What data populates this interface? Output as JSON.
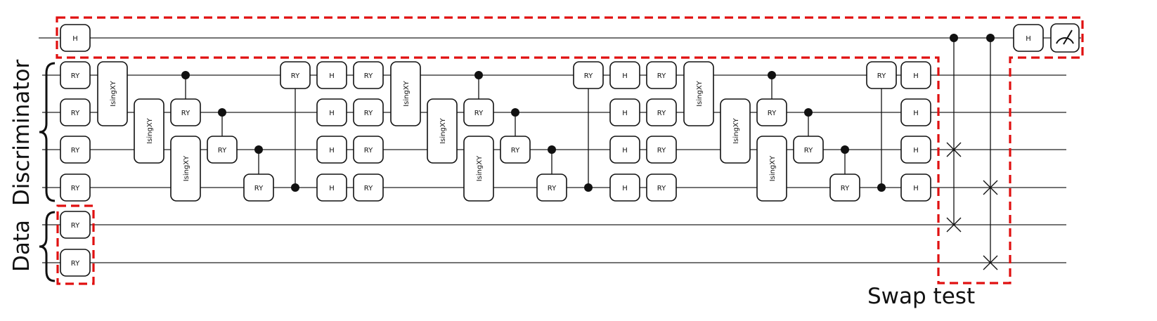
{
  "diagram": {
    "labels": {
      "discriminator": "Discriminator",
      "data": "Data",
      "swap_test": "Swap test"
    },
    "gate_names": {
      "h": "H",
      "ry": "RY",
      "isingxy": "IsingXY",
      "measure_icon": "measurement-meter-icon"
    },
    "colors": {
      "highlight_box": "#e01010",
      "wire": "#222222",
      "gate_border": "#111111"
    }
  }
}
